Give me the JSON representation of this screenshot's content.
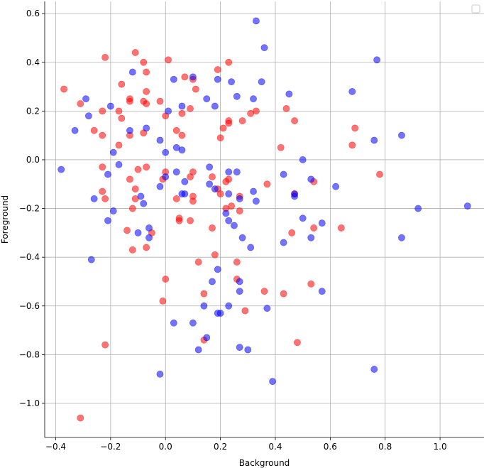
{
  "chart_data": {
    "type": "scatter",
    "xlabel": "Background",
    "ylabel": "Foreground",
    "xlim": [
      -0.44,
      1.16
    ],
    "ylim": [
      -1.14,
      0.65
    ],
    "xticks": [
      -0.4,
      -0.2,
      0.0,
      0.2,
      0.4,
      0.6,
      0.8,
      1.0
    ],
    "yticks": [
      -1.0,
      -0.8,
      -0.6,
      -0.4,
      -0.2,
      0.0,
      0.2,
      0.4,
      0.6
    ],
    "grid": true,
    "legend_position": "top-right",
    "series": [
      {
        "color": "#ff0000",
        "points": [
          [
            -0.22,
            0.42
          ],
          [
            -0.11,
            0.44
          ],
          [
            -0.08,
            0.4
          ],
          [
            -0.07,
            0.36
          ],
          [
            0.01,
            0.41
          ],
          [
            0.23,
            0.4
          ],
          [
            0.19,
            0.37
          ],
          [
            -0.37,
            0.29
          ],
          [
            -0.16,
            0.31
          ],
          [
            -0.13,
            0.25
          ],
          [
            -0.13,
            0.24
          ],
          [
            -0.07,
            0.28
          ],
          [
            -0.08,
            0.24
          ],
          [
            -0.07,
            0.23
          ],
          [
            -0.02,
            0.24
          ],
          [
            0.07,
            0.34
          ],
          [
            0.1,
            0.33
          ],
          [
            0.11,
            0.29
          ],
          [
            -0.31,
            0.23
          ],
          [
            -0.23,
            0.2
          ],
          [
            -0.17,
            0.2
          ],
          [
            -0.16,
            0.17
          ],
          [
            0.0,
            0.18
          ],
          [
            0.06,
            0.19
          ],
          [
            0.09,
            0.21
          ],
          [
            0.23,
            0.16
          ],
          [
            0.28,
            0.16
          ],
          [
            0.31,
            0.19
          ],
          [
            0.33,
            0.2
          ],
          [
            0.44,
            0.21
          ],
          [
            0.47,
            0.16
          ],
          [
            -0.26,
            0.12
          ],
          [
            -0.23,
            0.1
          ],
          [
            -0.13,
            0.1
          ],
          [
            -0.08,
            0.11
          ],
          [
            0.04,
            0.12
          ],
          [
            0.06,
            0.1
          ],
          [
            0.2,
            0.09
          ],
          [
            0.21,
            0.13
          ],
          [
            0.23,
            0.15
          ],
          [
            0.42,
            0.05
          ],
          [
            0.69,
            0.13
          ],
          [
            0.68,
            0.06
          ],
          [
            -0.17,
            0.06
          ],
          [
            -0.23,
            -0.03
          ],
          [
            -0.1,
            -0.04
          ],
          [
            -0.07,
            -0.03
          ],
          [
            -0.01,
            -0.08
          ],
          [
            0.0,
            -0.05
          ],
          [
            0.09,
            -0.07
          ],
          [
            0.1,
            -0.05
          ],
          [
            0.17,
            -0.07
          ],
          [
            0.22,
            -0.09
          ],
          [
            0.23,
            -0.08
          ],
          [
            -0.22,
            -0.16
          ],
          [
            -0.13,
            -0.08
          ],
          [
            -0.11,
            -0.12
          ],
          [
            -0.11,
            -0.16
          ],
          [
            -0.12,
            -0.2
          ],
          [
            -0.23,
            -0.13
          ],
          [
            0.04,
            -0.16
          ],
          [
            0.1,
            -0.15
          ],
          [
            0.1,
            -0.17
          ],
          [
            0.19,
            -0.12
          ],
          [
            0.2,
            -0.14
          ],
          [
            0.22,
            -0.2
          ],
          [
            0.24,
            -0.19
          ],
          [
            0.27,
            -0.15
          ],
          [
            0.27,
            -0.21
          ],
          [
            0.37,
            -0.1
          ],
          [
            0.47,
            -0.14
          ],
          [
            0.54,
            -0.09
          ],
          [
            0.78,
            -0.06
          ],
          [
            -0.14,
            -0.29
          ],
          [
            -0.12,
            -0.37
          ],
          [
            -0.07,
            -0.36
          ],
          [
            -0.05,
            -0.3
          ],
          [
            0.05,
            -0.25
          ],
          [
            0.05,
            -0.24
          ],
          [
            0.09,
            -0.25
          ],
          [
            0.17,
            -0.28
          ],
          [
            0.18,
            -0.39
          ],
          [
            0.12,
            -0.42
          ],
          [
            0.26,
            -0.42
          ],
          [
            0.46,
            -0.3
          ],
          [
            0.54,
            -0.28
          ],
          [
            0.64,
            -0.28
          ],
          [
            0.0,
            -0.49
          ],
          [
            -0.01,
            -0.58
          ],
          [
            0.14,
            -0.55
          ],
          [
            0.26,
            -0.49
          ],
          [
            0.29,
            -0.62
          ],
          [
            0.36,
            -0.54
          ],
          [
            0.43,
            -0.55
          ],
          [
            0.53,
            -0.51
          ],
          [
            -0.22,
            -0.76
          ],
          [
            0.14,
            -0.74
          ],
          [
            0.48,
            -0.75
          ],
          [
            -0.31,
            -1.06
          ]
        ]
      },
      {
        "color": "#0000ff",
        "points": [
          [
            0.33,
            0.57
          ],
          [
            0.36,
            0.46
          ],
          [
            0.77,
            0.41
          ],
          [
            -0.12,
            0.36
          ],
          [
            0.03,
            0.33
          ],
          [
            0.1,
            0.34
          ],
          [
            0.19,
            0.33
          ],
          [
            0.24,
            0.32
          ],
          [
            0.35,
            0.32
          ],
          [
            -0.29,
            0.25
          ],
          [
            -0.2,
            0.22
          ],
          [
            0.06,
            0.22
          ],
          [
            0.15,
            0.25
          ],
          [
            0.18,
            0.22
          ],
          [
            0.26,
            0.26
          ],
          [
            0.32,
            0.25
          ],
          [
            0.45,
            0.27
          ],
          [
            0.68,
            0.28
          ],
          [
            -0.33,
            0.12
          ],
          [
            -0.28,
            0.18
          ],
          [
            -0.13,
            0.12
          ],
          [
            -0.07,
            0.13
          ],
          [
            0.01,
            0.2
          ],
          [
            -0.02,
            0.08
          ],
          [
            0.06,
            0.04
          ],
          [
            0.04,
            0.05
          ],
          [
            0.0,
            0.03
          ],
          [
            -0.19,
            0.03
          ],
          [
            -0.17,
            -0.02
          ],
          [
            0.5,
            0.0
          ],
          [
            0.76,
            0.08
          ],
          [
            0.86,
            0.1
          ],
          [
            -0.38,
            -0.04
          ],
          [
            -0.21,
            -0.06
          ],
          [
            -0.26,
            -0.16
          ],
          [
            -0.19,
            -0.21
          ],
          [
            -0.09,
            -0.15
          ],
          [
            -0.08,
            -0.18
          ],
          [
            -0.02,
            -0.11
          ],
          [
            0.0,
            -0.07
          ],
          [
            0.04,
            -0.05
          ],
          [
            0.07,
            -0.09
          ],
          [
            0.06,
            -0.14
          ],
          [
            0.07,
            -0.14
          ],
          [
            0.16,
            -0.03
          ],
          [
            0.16,
            -0.1
          ],
          [
            0.18,
            -0.12
          ],
          [
            0.23,
            -0.05
          ],
          [
            0.26,
            -0.05
          ],
          [
            0.23,
            -0.14
          ],
          [
            0.22,
            -0.22
          ],
          [
            0.27,
            -0.16
          ],
          [
            0.32,
            -0.13
          ],
          [
            0.33,
            -0.17
          ],
          [
            0.43,
            -0.06
          ],
          [
            0.47,
            -0.15
          ],
          [
            0.47,
            -0.14
          ],
          [
            0.53,
            -0.08
          ],
          [
            0.62,
            -0.11
          ],
          [
            -0.27,
            -0.41
          ],
          [
            -0.21,
            -0.25
          ],
          [
            -0.1,
            -0.3
          ],
          [
            -0.06,
            -0.28
          ],
          [
            -0.06,
            -0.32
          ],
          [
            0.23,
            -0.25
          ],
          [
            0.25,
            -0.27
          ],
          [
            0.28,
            -0.32
          ],
          [
            0.31,
            -0.36
          ],
          [
            0.43,
            -0.34
          ],
          [
            0.5,
            -0.24
          ],
          [
            0.53,
            -0.32
          ],
          [
            0.57,
            -0.26
          ],
          [
            0.86,
            -0.32
          ],
          [
            0.92,
            -0.2
          ],
          [
            1.1,
            -0.19
          ],
          [
            0.19,
            -0.45
          ],
          [
            0.17,
            -0.5
          ],
          [
            0.27,
            -0.5
          ],
          [
            0.27,
            -0.54
          ],
          [
            0.57,
            -0.54
          ],
          [
            0.14,
            -0.6
          ],
          [
            0.19,
            -0.63
          ],
          [
            0.2,
            -0.63
          ],
          [
            0.23,
            -0.6
          ],
          [
            0.37,
            -0.61
          ],
          [
            0.03,
            -0.67
          ],
          [
            0.1,
            -0.67
          ],
          [
            0.12,
            -0.78
          ],
          [
            0.15,
            -0.73
          ],
          [
            0.27,
            -0.77
          ],
          [
            0.3,
            -0.78
          ],
          [
            -0.02,
            -0.88
          ],
          [
            0.39,
            -0.91
          ],
          [
            0.76,
            -0.86
          ]
        ]
      }
    ]
  }
}
